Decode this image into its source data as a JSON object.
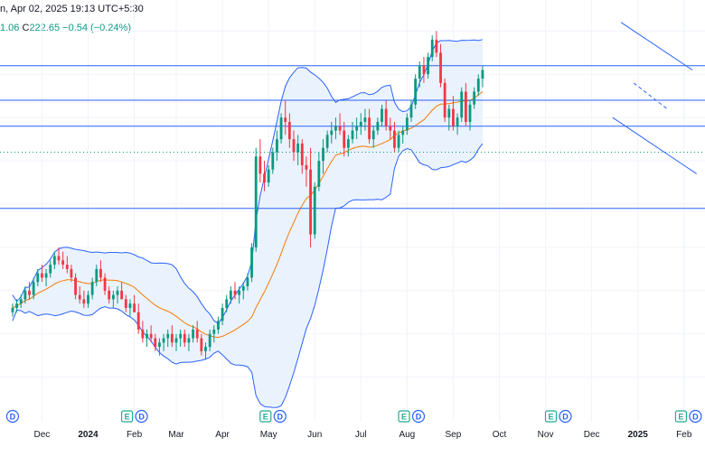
{
  "header": {
    "title": "n, Apr 02, 2025 19:13 UTC+5:30",
    "ohlc_partial": "1.06",
    "close_key": "C",
    "close_value": "222.65",
    "change": "−0.54 (−0.24%)"
  },
  "colors": {
    "up": "#089981",
    "down": "#f23645",
    "sma": "#f57c00",
    "band": "#2962ff",
    "band_fill": "#eaf2fd",
    "hline": "#2962ff",
    "trend": "#2962ff",
    "grid": "#f0f3fa",
    "dotted": "#089981"
  },
  "chart_data": {
    "type": "candlestick",
    "x_ticks": [
      {
        "label": "Dec",
        "t": 7
      },
      {
        "label": "2024",
        "t": 18,
        "bold": true
      },
      {
        "label": "Feb",
        "t": 29
      },
      {
        "label": "Mar",
        "t": 39
      },
      {
        "label": "Apr",
        "t": 50
      },
      {
        "label": "May",
        "t": 61
      },
      {
        "label": "Jun",
        "t": 72
      },
      {
        "label": "Jul",
        "t": 83
      },
      {
        "label": "Aug",
        "t": 94
      },
      {
        "label": "Sep",
        "t": 105
      },
      {
        "label": "Oct",
        "t": 116
      },
      {
        "label": "Nov",
        "t": 127
      },
      {
        "label": "Dec",
        "t": 138
      },
      {
        "label": "2025",
        "t": 149,
        "bold": true
      },
      {
        "label": "Feb",
        "t": 160
      }
    ],
    "earnings_markers": [
      {
        "t": 0,
        "letters": [
          "D"
        ]
      },
      {
        "t": 29,
        "letters": [
          "E",
          "D"
        ]
      },
      {
        "t": 62,
        "letters": [
          "E",
          "D"
        ]
      },
      {
        "t": 95,
        "letters": [
          "E",
          "D"
        ]
      },
      {
        "t": 130,
        "letters": [
          "E",
          "D"
        ]
      },
      {
        "t": 161,
        "letters": [
          "E",
          "D"
        ]
      }
    ],
    "horizontal_levels": [
      237,
      229,
      223,
      204
    ],
    "dotted_level": 217,
    "candles": [
      [
        180,
        182,
        179,
        181
      ],
      [
        181,
        183,
        180,
        182
      ],
      [
        182,
        184,
        181,
        183
      ],
      [
        183,
        186,
        182,
        185
      ],
      [
        185,
        187,
        183,
        184
      ],
      [
        184,
        188,
        183,
        187
      ],
      [
        187,
        190,
        186,
        189
      ],
      [
        189,
        191,
        187,
        188
      ],
      [
        188,
        190,
        186,
        189
      ],
      [
        189,
        192,
        188,
        191
      ],
      [
        191,
        194,
        190,
        193
      ],
      [
        193,
        195,
        191,
        192
      ],
      [
        192,
        194,
        190,
        191
      ],
      [
        191,
        193,
        189,
        190
      ],
      [
        190,
        191,
        187,
        188
      ],
      [
        188,
        189,
        183,
        184
      ],
      [
        184,
        186,
        182,
        183
      ],
      [
        183,
        185,
        181,
        182
      ],
      [
        182,
        185,
        181,
        184
      ],
      [
        184,
        188,
        183,
        187
      ],
      [
        187,
        191,
        186,
        190
      ],
      [
        190,
        192,
        187,
        188
      ],
      [
        188,
        189,
        184,
        185
      ],
      [
        185,
        186,
        182,
        183
      ],
      [
        183,
        185,
        181,
        184
      ],
      [
        184,
        186,
        182,
        185
      ],
      [
        185,
        187,
        183,
        183
      ],
      [
        183,
        184,
        180,
        181
      ],
      [
        181,
        183,
        179,
        182
      ],
      [
        182,
        184,
        180,
        180
      ],
      [
        180,
        182,
        175,
        176
      ],
      [
        176,
        178,
        173,
        174
      ],
      [
        174,
        176,
        172,
        175
      ],
      [
        175,
        177,
        173,
        174
      ],
      [
        174,
        175,
        171,
        172
      ],
      [
        172,
        174,
        170,
        173
      ],
      [
        173,
        175,
        171,
        174
      ],
      [
        174,
        176,
        172,
        175
      ],
      [
        175,
        177,
        172,
        173
      ],
      [
        173,
        175,
        171,
        174
      ],
      [
        174,
        176,
        172,
        175
      ],
      [
        175,
        176,
        172,
        173
      ],
      [
        173,
        175,
        171,
        174
      ],
      [
        174,
        177,
        173,
        176
      ],
      [
        176,
        178,
        173,
        174
      ],
      [
        174,
        175,
        170,
        171
      ],
      [
        171,
        173,
        169,
        172
      ],
      [
        172,
        176,
        171,
        175
      ],
      [
        175,
        177,
        173,
        176
      ],
      [
        176,
        179,
        175,
        178
      ],
      [
        178,
        182,
        177,
        181
      ],
      [
        181,
        184,
        180,
        183
      ],
      [
        183,
        186,
        182,
        185
      ],
      [
        185,
        187,
        183,
        184
      ],
      [
        184,
        186,
        182,
        185
      ],
      [
        185,
        187,
        183,
        186
      ],
      [
        186,
        189,
        185,
        188
      ],
      [
        188,
        196,
        187,
        195
      ],
      [
        195,
        218,
        194,
        216
      ],
      [
        216,
        220,
        210,
        212
      ],
      [
        212,
        215,
        208,
        210
      ],
      [
        210,
        214,
        209,
        213
      ],
      [
        213,
        218,
        212,
        217
      ],
      [
        217,
        222,
        215,
        220
      ],
      [
        220,
        226,
        219,
        225
      ],
      [
        225,
        229,
        221,
        224
      ],
      [
        224,
        226,
        218,
        220
      ],
      [
        220,
        222,
        215,
        217
      ],
      [
        217,
        221,
        214,
        219
      ],
      [
        219,
        220,
        212,
        214
      ],
      [
        214,
        216,
        209,
        213
      ],
      [
        213,
        218,
        195,
        198
      ],
      [
        198,
        210,
        197,
        209
      ],
      [
        209,
        217,
        208,
        215
      ],
      [
        215,
        220,
        212,
        218
      ],
      [
        218,
        222,
        217,
        221
      ],
      [
        221,
        224,
        219,
        222
      ],
      [
        222,
        225,
        220,
        223
      ],
      [
        223,
        226,
        221,
        222
      ],
      [
        222,
        224,
        216,
        218
      ],
      [
        218,
        221,
        216,
        220
      ],
      [
        220,
        224,
        219,
        222
      ],
      [
        222,
        225,
        220,
        223
      ],
      [
        223,
        226,
        221,
        224
      ],
      [
        224,
        227,
        222,
        225
      ],
      [
        225,
        227,
        219,
        220
      ],
      [
        220,
        223,
        218,
        222
      ],
      [
        222,
        225,
        221,
        224
      ],
      [
        224,
        228,
        223,
        227
      ],
      [
        227,
        229,
        222,
        223
      ],
      [
        223,
        225,
        220,
        222
      ],
      [
        222,
        224,
        217,
        218
      ],
      [
        218,
        222,
        217,
        221
      ],
      [
        221,
        223,
        219,
        222
      ],
      [
        222,
        226,
        221,
        225
      ],
      [
        225,
        229,
        224,
        228
      ],
      [
        228,
        235,
        227,
        234
      ],
      [
        234,
        238,
        232,
        237
      ],
      [
        237,
        239,
        233,
        235
      ],
      [
        235,
        240,
        234,
        239
      ],
      [
        239,
        244,
        238,
        243
      ],
      [
        243,
        245,
        239,
        240
      ],
      [
        240,
        242,
        232,
        233
      ],
      [
        233,
        234,
        224,
        225
      ],
      [
        225,
        228,
        222,
        227
      ],
      [
        227,
        230,
        222,
        223
      ],
      [
        223,
        226,
        221,
        225
      ],
      [
        225,
        232,
        224,
        231
      ],
      [
        231,
        233,
        223,
        224
      ],
      [
        224,
        229,
        222,
        228
      ],
      [
        228,
        232,
        227,
        231
      ],
      [
        231,
        235,
        230,
        234
      ],
      [
        234,
        237,
        232,
        236
      ]
    ],
    "trend_lines": [
      {
        "from": [
          145,
          247
        ],
        "to": [
          162,
          236
        ]
      },
      {
        "from": [
          143,
          225
        ],
        "to": [
          163,
          212
        ]
      },
      {
        "from": [
          148,
          233
        ],
        "to": [
          156,
          227
        ]
      }
    ],
    "bollinger_period": 20,
    "bollinger_k": 2,
    "sma_period": 20,
    "y_range": [
      162,
      248
    ],
    "t_range": [
      -3,
      165
    ]
  }
}
